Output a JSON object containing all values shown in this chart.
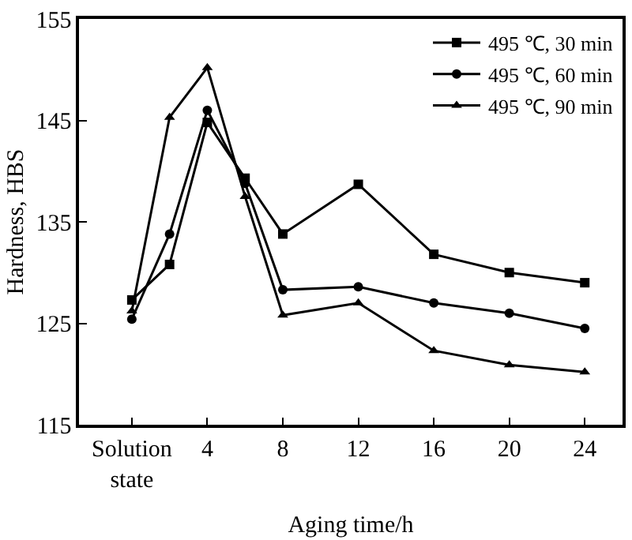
{
  "chart_data": {
    "type": "line",
    "xlabel": "Aging time/h",
    "ylabel": "Hardness, HBS",
    "x": [
      0,
      2,
      4,
      6,
      8,
      12,
      16,
      20,
      24
    ],
    "series": [
      {
        "name": "495 ℃, 30 min",
        "color": "#000000",
        "marker": "square",
        "values": [
          127.3,
          130.8,
          144.8,
          139.3,
          133.8,
          138.7,
          131.8,
          130.0,
          129.0
        ]
      },
      {
        "name": "495 ℃, 60 min",
        "color": "#000000",
        "marker": "circle",
        "values": [
          125.4,
          133.8,
          146.0,
          138.8,
          128.3,
          128.6,
          127.0,
          126.0,
          124.5
        ]
      },
      {
        "name": "495 ℃, 90 min",
        "color": "#000000",
        "marker": "triangle",
        "values": [
          126.2,
          145.3,
          150.2,
          137.5,
          125.8,
          127.0,
          122.3,
          120.9,
          120.2
        ]
      }
    ],
    "xlim": [
      -2.8,
      26.0
    ],
    "xticks": [
      {
        "value": 0,
        "label": "Solution\nstate"
      },
      4,
      8,
      12,
      16,
      20,
      24
    ],
    "ylim": [
      115,
      155
    ],
    "yticks": [
      115,
      125,
      135,
      145,
      155
    ],
    "legend": "top right",
    "line_style": "solid"
  }
}
